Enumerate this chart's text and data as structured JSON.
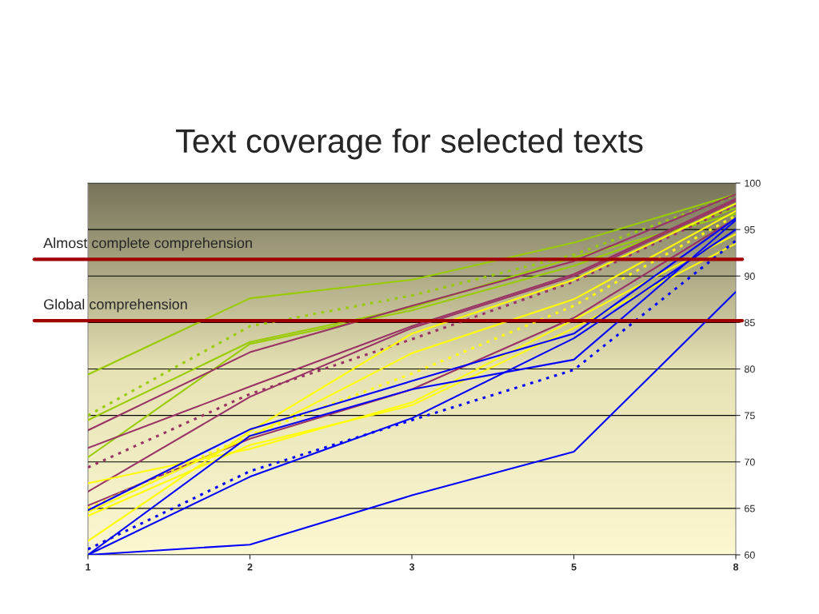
{
  "chart_data": {
    "type": "line",
    "title": "Text coverage for selected texts",
    "categories": [
      "1",
      "2",
      "3",
      "5",
      "8"
    ],
    "ylim": [
      60,
      100
    ],
    "yticks": [
      60,
      65,
      70,
      75,
      80,
      85,
      90,
      95,
      100
    ],
    "grid": "y",
    "series": [
      {
        "color": "#99cc00",
        "values": [
          79.4,
          87.6,
          89.6,
          93.6,
          98.8
        ]
      },
      {
        "color": "#99cc00",
        "line_style": "dotted",
        "values": [
          75.0,
          84.6,
          87.9,
          92.3,
          98.7
        ]
      },
      {
        "color": "#99cc00",
        "values": [
          74.5,
          82.9,
          86.6,
          92.0,
          96.7
        ]
      },
      {
        "color": "#99cc00",
        "values": [
          70.5,
          82.7,
          86.3,
          91.1,
          97.3
        ]
      },
      {
        "color": "#993366",
        "values": [
          73.4,
          81.8,
          86.8,
          91.6,
          98.8
        ]
      },
      {
        "color": "#993366",
        "values": [
          71.5,
          78.1,
          84.6,
          90.2,
          98.3
        ]
      },
      {
        "color": "#993366",
        "line_style": "dotted",
        "values": [
          69.4,
          77.3,
          83.2,
          89.4,
          97.6
        ]
      },
      {
        "color": "#993366",
        "values": [
          66.8,
          77.0,
          84.4,
          90.0,
          98.1
        ]
      },
      {
        "color": "#993366",
        "values": [
          65.3,
          72.5,
          77.8,
          85.5,
          96.2
        ]
      },
      {
        "color": "#ffff00",
        "values": [
          61.5,
          73.3,
          83.8,
          89.6,
          97.8
        ]
      },
      {
        "color": "#ffff00",
        "values": [
          67.7,
          71.4,
          76.4,
          85.3,
          94.5
        ]
      },
      {
        "color": "#ffff00",
        "values": [
          64.6,
          72.7,
          81.7,
          87.5,
          97.0
        ]
      },
      {
        "color": "#ffff00",
        "values": [
          64.2,
          71.8,
          76.1,
          84.4,
          93.5
        ]
      },
      {
        "color": "#ffff00",
        "line_style": "dotted",
        "values": [
          65.0,
          72.9,
          79.5,
          86.8,
          96.5
        ]
      },
      {
        "color": "#0000ff",
        "values": [
          64.8,
          73.5,
          78.7,
          83.8,
          96.2
        ]
      },
      {
        "color": "#0000ff",
        "values": [
          60.0,
          72.8,
          77.8,
          81.0,
          96.0
        ]
      },
      {
        "color": "#0000ff",
        "values": [
          60.0,
          68.4,
          74.7,
          83.3,
          95.0
        ]
      },
      {
        "color": "#0000ff",
        "line_style": "dotted",
        "values": [
          60.6,
          69.0,
          74.5,
          79.9,
          93.8
        ]
      },
      {
        "color": "#0000ff",
        "values": [
          60.0,
          61.1,
          66.4,
          71.1,
          88.3
        ]
      }
    ],
    "ref_lines": [
      {
        "axis": "y",
        "value": 91.8,
        "label": "Almost complete comprehension",
        "color": "#a00000"
      },
      {
        "axis": "y",
        "value": 85.2,
        "label": "Global comprehension",
        "color": "#a00000"
      }
    ]
  }
}
